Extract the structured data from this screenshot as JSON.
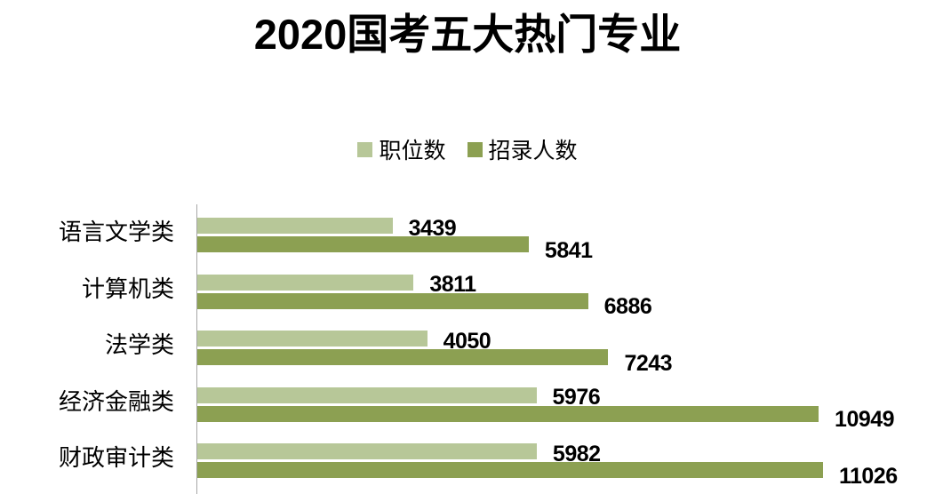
{
  "header": {
    "title_prefix": "2020",
    "title_main": "国考五大热门专业"
  },
  "chart_data": {
    "type": "bar",
    "orientation": "horizontal",
    "title": "2020国考五大热门专业",
    "categories": [
      "语言文学类",
      "计算机类",
      "法学类",
      "经济金融类",
      "财政审计类"
    ],
    "series": [
      {
        "name": "职位数",
        "color": "#b7c798",
        "values": [
          3439,
          3811,
          4050,
          5976,
          5982
        ]
      },
      {
        "name": "招录人数",
        "color": "#8ca052",
        "values": [
          5841,
          6886,
          7243,
          10949,
          11026
        ]
      }
    ],
    "xlim": [
      0,
      13000
    ],
    "value_labels": true,
    "legend_position": "top-center",
    "grid": false,
    "axis_line_color": "#a6a6a6",
    "text_color": "#000000",
    "background": "#ffffff"
  }
}
